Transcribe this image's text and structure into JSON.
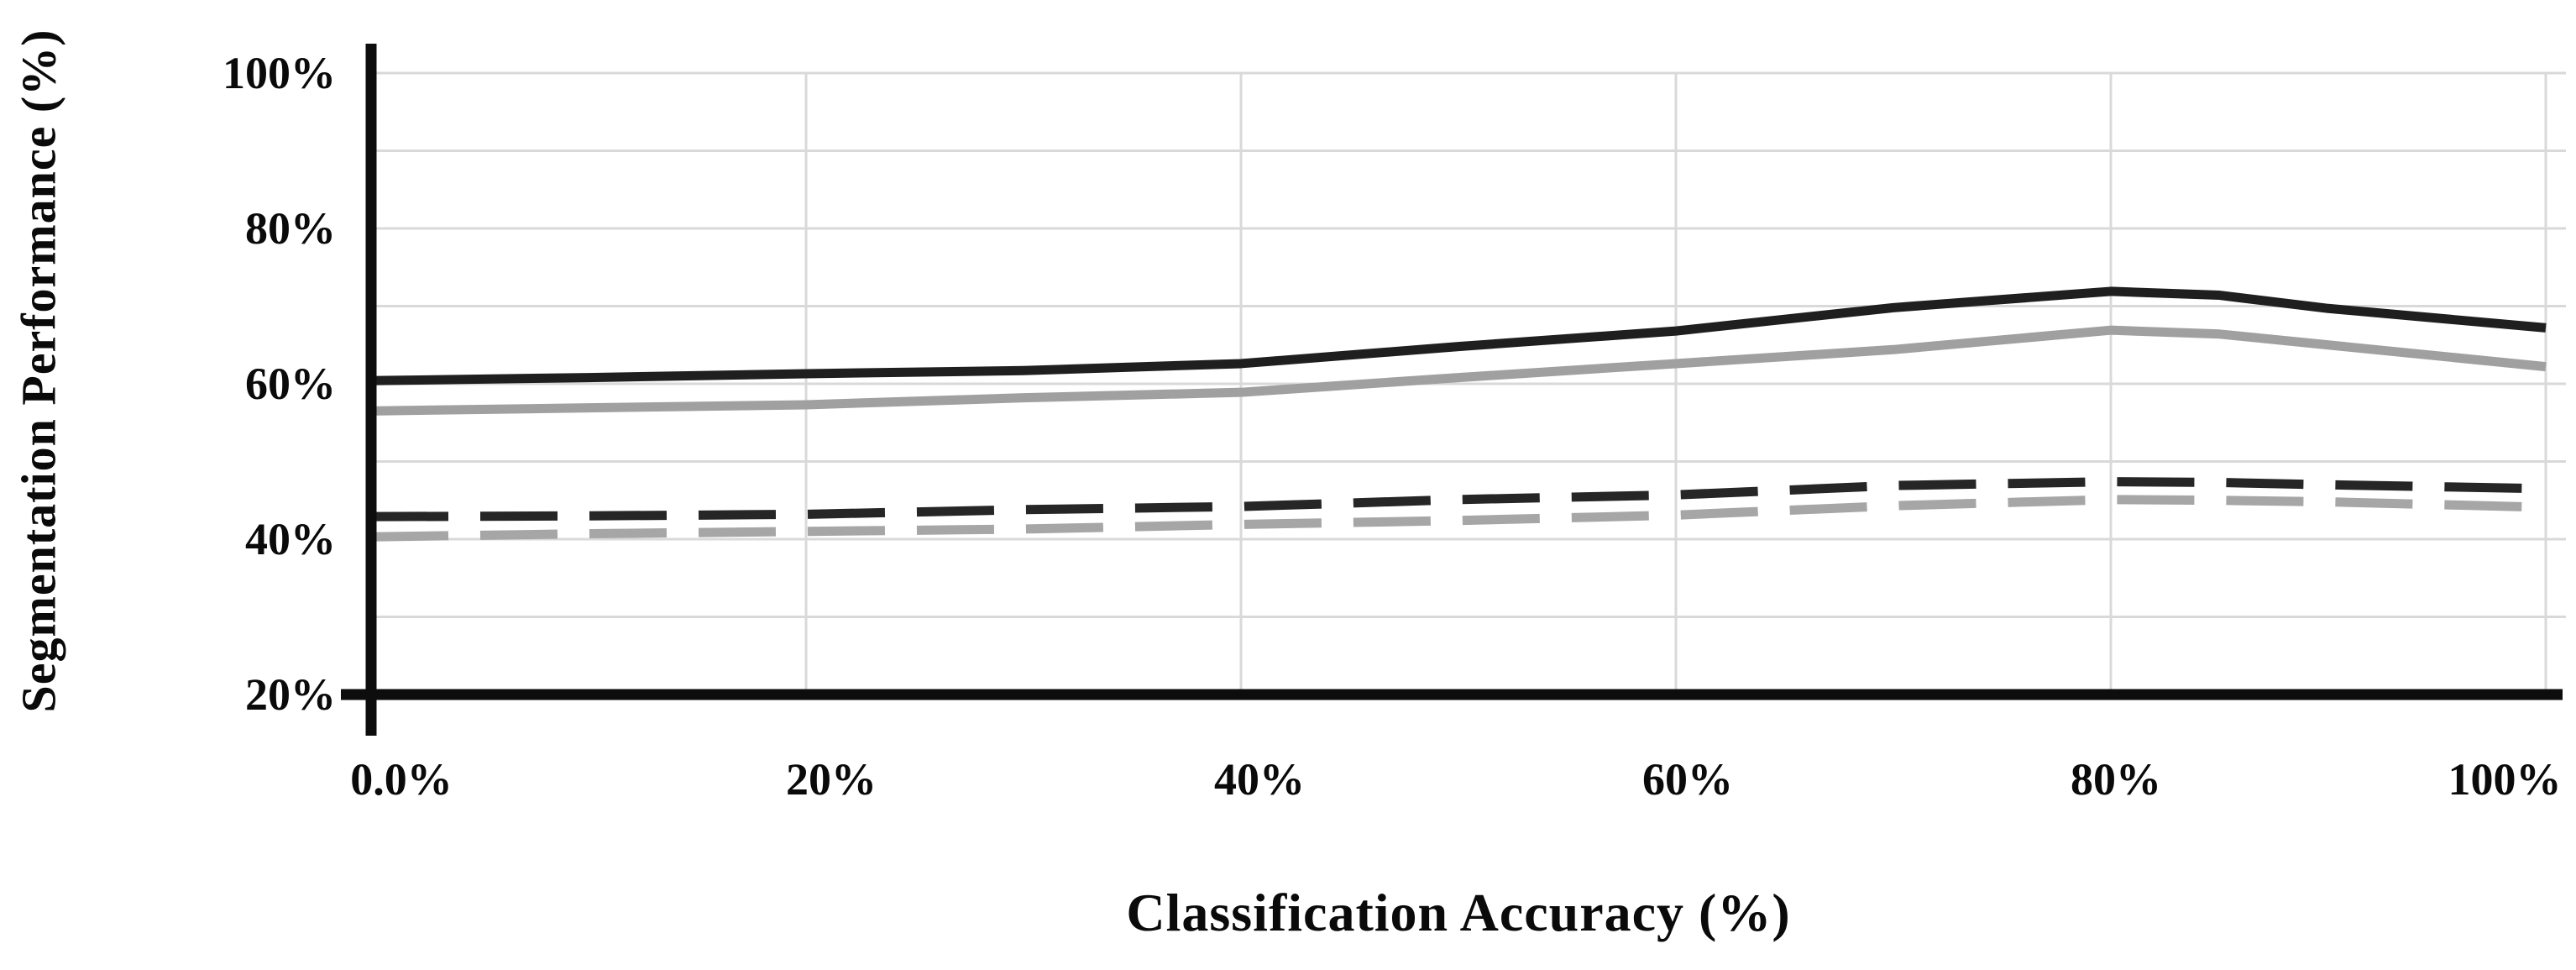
{
  "figure": {
    "background": "#ffffff",
    "axis_color": "#0d0d0d",
    "grid_color": "#d9d9d9"
  },
  "chart_data": {
    "type": "line",
    "title": "",
    "xlabel": "Classification Accuracy (%)",
    "ylabel": "Segmentation Performance (%)",
    "xlim": [
      0,
      100
    ],
    "ylim": [
      20,
      100
    ],
    "x_tick_labels": [
      "0.0%",
      "20%",
      "40%",
      "60%",
      "80%",
      "100%"
    ],
    "y_tick_labels": [
      "100%",
      "80%",
      "60%",
      "40%",
      "20%"
    ],
    "grid": {
      "visible": true,
      "horizontal_step_pct": 10,
      "vertical_step_pct": 20
    },
    "legend": {
      "visible": false
    },
    "x": [
      0,
      10,
      20,
      30,
      40,
      50,
      60,
      70,
      80,
      85,
      90,
      100
    ],
    "series": [
      {
        "name": "solid dark line",
        "style": "solid",
        "color": "#1f1f1f",
        "values": [
          60.4,
          60.8,
          61.3,
          61.7,
          62.6,
          64.8,
          66.8,
          69.8,
          71.9,
          71.4,
          69.7,
          67.2
        ]
      },
      {
        "name": "solid gray line",
        "style": "solid",
        "color": "#a0a0a0",
        "values": [
          56.5,
          56.9,
          57.3,
          58.2,
          58.9,
          60.8,
          62.6,
          64.4,
          66.9,
          66.4,
          65.0,
          62.2
        ]
      },
      {
        "name": "dashed dark line",
        "style": "dashed",
        "color": "#262626",
        "values": [
          42.9,
          43.0,
          43.2,
          43.8,
          44.2,
          45.1,
          45.7,
          46.9,
          47.4,
          47.3,
          47.0,
          46.5
        ]
      },
      {
        "name": "dashed gray line",
        "style": "dashed",
        "color": "#a6a6a6",
        "values": [
          40.3,
          40.7,
          41.0,
          41.3,
          41.9,
          42.4,
          43.1,
          44.3,
          45.1,
          45.0,
          44.8,
          44.1
        ]
      }
    ]
  }
}
